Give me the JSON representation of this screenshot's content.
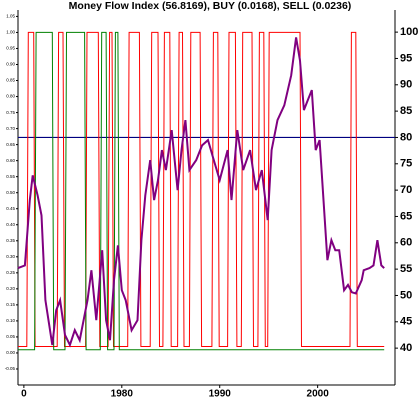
{
  "chart_data": {
    "type": "line",
    "title": "Money Flow Index (56.8169), BUY (0.0168), SELL (0.0236)",
    "xlim": [
      1969.4,
      2007.9
    ],
    "xticks": [
      {
        "value": 1970,
        "label": "0"
      },
      1980,
      1990,
      2000
    ],
    "ylim": [
      -0.1,
      1.07
    ],
    "yticks": [
      -0.05,
      {
        "value": 0,
        "label": "0.00"
      },
      0.05,
      {
        "value": 0.1,
        "label": "0.10"
      },
      0.15,
      {
        "value": 0.2,
        "label": "0.20"
      },
      0.25,
      {
        "value": 0.3,
        "label": "0.30"
      },
      0.35,
      {
        "value": 0.4,
        "label": "0.40"
      },
      0.45,
      {
        "value": 0.5,
        "label": "0.50"
      },
      0.55,
      {
        "value": 0.6,
        "label": "0.60"
      },
      0.65,
      {
        "value": 0.7,
        "label": "0.70"
      },
      0.75,
      {
        "value": 0.8,
        "label": "0.80"
      },
      0.85,
      {
        "value": 0.9,
        "label": "0.90"
      },
      0.95,
      {
        "value": 1,
        "label": "1.00"
      },
      1.05
    ],
    "y2lim": [
      33,
      104.2
    ],
    "y2ticks": [
      40,
      45,
      50,
      55,
      60,
      65,
      70,
      75,
      80,
      85,
      90,
      95,
      100
    ],
    "reference_line": {
      "value": 80,
      "axis": "y2",
      "color": "#000080"
    },
    "series": [
      {
        "name": "SELL",
        "color": "#ff0000",
        "axis": "y",
        "width": 1,
        "x": [
          1969.4,
          1970.3,
          1970.45,
          1971.0,
          1971.15,
          1973.4,
          1973.55,
          1974.0,
          1974.15,
          1976.3,
          1976.45,
          1977.6,
          1977.75,
          1978.6,
          1978.75,
          1979.0,
          1979.15,
          1980.6,
          1980.75,
          1981.8,
          1981.95,
          1982.9,
          1983.05,
          1983.7,
          1983.85,
          1984.2,
          1984.35,
          1984.9,
          1985.05,
          1985.7,
          1985.85,
          1986.2,
          1986.35,
          1986.9,
          1987.05,
          1988.0,
          1988.15,
          1989.2,
          1989.35,
          1989.8,
          1989.95,
          1990.8,
          1990.95,
          1991.6,
          1991.75,
          1992.2,
          1992.35,
          1993.3,
          1993.45,
          1993.9,
          1994.05,
          1994.5,
          1994.65,
          1994.9,
          1995.05,
          1998.2,
          1998.35,
          2003.3,
          2003.45,
          2003.9,
          2004.05,
          2006.8
        ],
        "values": [
          0.02,
          0.02,
          1,
          1,
          0.02,
          0.02,
          1,
          1,
          0.02,
          0.02,
          1,
          1,
          0.02,
          0.02,
          1,
          1,
          0.02,
          0.02,
          1,
          1,
          0.02,
          0.02,
          1,
          1,
          0.02,
          0.02,
          1,
          1,
          0.02,
          0.02,
          1,
          1,
          0.02,
          0.02,
          1,
          1,
          0.02,
          0.02,
          1,
          1,
          0.02,
          0.02,
          1,
          1,
          0.02,
          0.02,
          1,
          1,
          0.02,
          0.02,
          1,
          1,
          0.02,
          0.02,
          1,
          1,
          0.02,
          0.02,
          1,
          1,
          0.02,
          0.02
        ]
      },
      {
        "name": "BUY",
        "color": "#008000",
        "axis": "y",
        "width": 1,
        "x": [
          1969.4,
          1971.1,
          1971.25,
          1972.9,
          1973.05,
          1974.2,
          1974.35,
          1976.2,
          1976.35,
          1977.8,
          1977.95,
          1978.4,
          1978.55,
          1979.2,
          1979.35,
          1979.6,
          1979.75,
          2006.8
        ],
        "values": [
          0.01,
          0.01,
          1,
          1,
          0.01,
          0.01,
          1,
          1,
          0.01,
          0.01,
          1,
          1,
          0.01,
          0.01,
          1,
          1,
          0.01,
          0.01
        ]
      },
      {
        "name": "Money Flow Index",
        "color": "#800080",
        "axis": "y2",
        "width": 2,
        "x": [
          1969.4,
          1970.1,
          1970.6,
          1970.9,
          1971.4,
          1971.8,
          1972.2,
          1972.9,
          1973.3,
          1973.7,
          1974.2,
          1974.7,
          1975.2,
          1975.7,
          1976.5,
          1976.9,
          1977.4,
          1978.0,
          1978.4,
          1978.8,
          1979.2,
          1979.6,
          1980.0,
          1980.4,
          1981.0,
          1981.6,
          1982.0,
          1982.4,
          1982.9,
          1983.3,
          1983.7,
          1984.1,
          1984.5,
          1985.1,
          1985.7,
          1986.1,
          1986.5,
          1986.9,
          1987.6,
          1988.2,
          1988.8,
          1989.4,
          1990.0,
          1990.8,
          1991.2,
          1991.8,
          1992.4,
          1993.1,
          1993.7,
          1994.3,
          1994.9,
          1995.3,
          1995.9,
          1996.6,
          1997.3,
          1997.8,
          1998.2,
          1998.6,
          1999.0,
          1999.4,
          1999.8,
          2000.2,
          2000.6,
          2001.0,
          2001.4,
          2001.8,
          2002.2,
          2002.7,
          2003.1,
          2003.5,
          2003.9,
          2004.5,
          2004.7,
          2005.3,
          2005.7,
          2006.1,
          2006.5,
          2006.8
        ],
        "values": [
          55.2,
          55.7,
          68.1,
          72.8,
          69.0,
          65.2,
          49.1,
          40.6,
          47.2,
          49.1,
          42.5,
          40.6,
          43.4,
          41.5,
          49.1,
          54.8,
          45.3,
          58.6,
          45.3,
          41.5,
          52.9,
          59.5,
          51.0,
          49.1,
          43.4,
          45.3,
          60.5,
          69.0,
          75.7,
          68.1,
          71.9,
          77.6,
          73.8,
          81.4,
          70.0,
          77.6,
          83.3,
          73.8,
          75.7,
          78.5,
          79.5,
          75.7,
          71.9,
          77.6,
          68.1,
          81.4,
          73.8,
          77.6,
          70.0,
          73.8,
          64.3,
          77.6,
          83.3,
          86.1,
          91.8,
          99.0,
          94.6,
          85.2,
          87.1,
          89.0,
          77.6,
          79.5,
          68.1,
          56.7,
          60.5,
          58.6,
          58.6,
          51.0,
          52.0,
          50.6,
          50.4,
          52.9,
          54.8,
          55.2,
          55.7,
          60.5,
          55.7,
          55.2
        ]
      }
    ]
  }
}
